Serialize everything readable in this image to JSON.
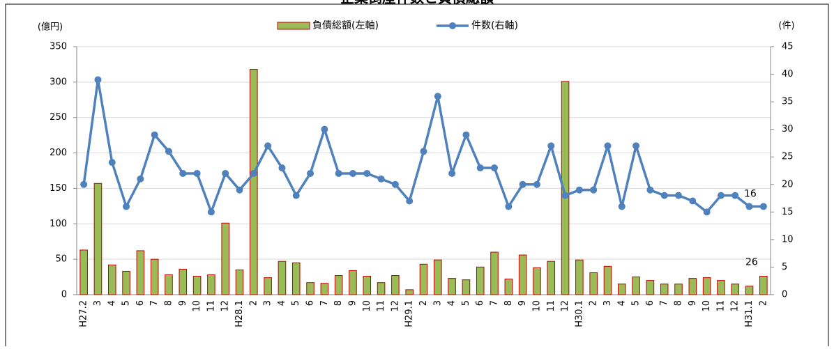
{
  "chart_data": {
    "type": "bar-line",
    "title": "企業倒産件数と負債総額",
    "y_label": "(億円)",
    "y2_label": "(件)",
    "categories": [
      "H27.2",
      "3",
      "4",
      "5",
      "6",
      "7",
      "8",
      "9",
      "10",
      "11",
      "12",
      "H28.1",
      "2",
      "3",
      "4",
      "5",
      "6",
      "7",
      "8",
      "9",
      "10",
      "11",
      "12",
      "H29.1",
      "2",
      "3",
      "4",
      "5",
      "6",
      "7",
      "8",
      "9",
      "10",
      "11",
      "12",
      "H30.1",
      "2",
      "3",
      "4",
      "5",
      "6",
      "7",
      "8",
      "9",
      "10",
      "11",
      "12",
      "H31.1",
      "2"
    ],
    "series": [
      {
        "name": "負債総額(左軸)",
        "type": "bar",
        "color": "#9bbb59",
        "edge_color": "#c00000",
        "data_labels": "last",
        "values": [
          63,
          157,
          42,
          33,
          62,
          50,
          28,
          36,
          26,
          28,
          101,
          35,
          318,
          24,
          47,
          45,
          17,
          16,
          27,
          34,
          26,
          17,
          27,
          7,
          43,
          49,
          23,
          21,
          39,
          60,
          22,
          56,
          38,
          47,
          301,
          49,
          31,
          40,
          15,
          25,
          20,
          15,
          15,
          23,
          24,
          20,
          15,
          12,
          26
        ]
      },
      {
        "name": "件数(右軸)",
        "type": "line",
        "axis": "y2",
        "color": "#4f81bd",
        "data_labels": "last",
        "values": [
          20,
          39,
          24,
          16,
          21,
          29,
          26,
          22,
          22,
          15,
          22,
          19,
          22,
          27,
          23,
          18,
          22,
          30,
          22,
          22,
          22,
          21,
          20,
          17,
          26,
          36,
          22,
          29,
          23,
          23,
          16,
          20,
          20,
          27,
          18,
          19,
          19,
          27,
          16,
          27,
          19,
          18,
          18,
          17,
          15,
          18,
          18,
          16,
          16
        ]
      }
    ],
    "ylim": [
      0,
      350
    ],
    "yticks": [
      0,
      50,
      100,
      150,
      200,
      250,
      300,
      350
    ],
    "y2lim": [
      0,
      45
    ],
    "y2ticks": [
      0,
      5,
      10,
      15,
      20,
      25,
      30,
      35,
      40,
      45
    ],
    "grid": true,
    "legend": "top"
  }
}
